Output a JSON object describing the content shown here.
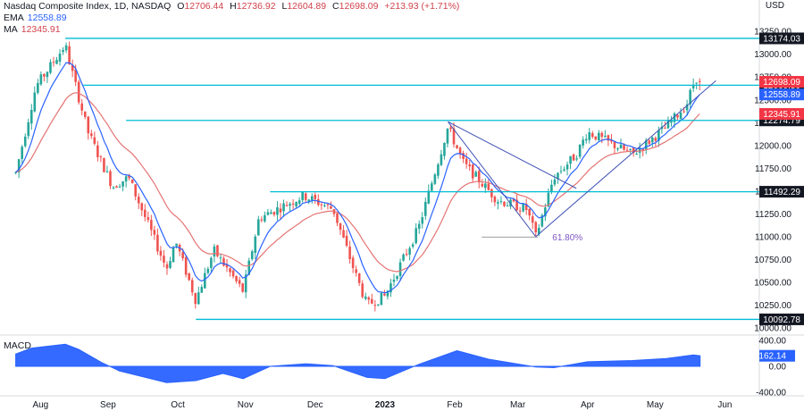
{
  "header": {
    "title": "Nasdaq Composite Index, 1D, NASDAQ",
    "ohlc": {
      "o_label": "O",
      "o": "12706.44",
      "h_label": "H",
      "h": "12736.92",
      "l_label": "L",
      "l": "12604.89",
      "c_label": "C",
      "c": "12698.09",
      "change": "+213.93 (+1.71%)"
    },
    "ema_label": "EMA",
    "ema_value": "12558.89",
    "ma_label": "MA",
    "ma_value": "12345.91",
    "currency": "USD"
  },
  "colors": {
    "up": "#26a69a",
    "down": "#ef5350",
    "ema": "#2962ff",
    "ma": "#e57373",
    "hline": "#00bcd4",
    "trend": "#3f51b5",
    "fib": "#7e57c2",
    "macd": "#2962ff",
    "close_badge": "#f23645",
    "ema_badge": "#2962ff",
    "ma_badge": "#f23645",
    "level_badge": "#131722"
  },
  "chart_data": [
    {
      "type": "candlestick",
      "title": "Nasdaq Composite Index, 1D, NASDAQ",
      "x_labels": [
        "Aug",
        "Sep",
        "Oct",
        "Nov",
        "Dec",
        "2023",
        "Feb",
        "Mar",
        "Apr",
        "May",
        "Jun"
      ],
      "y_ticks": [
        "13250.00",
        "13000.00",
        "12750.00",
        "12500.00",
        "12250.00",
        "12000.00",
        "11750.00",
        "11500.00",
        "11250.00",
        "11000.00",
        "10750.00",
        "10500.00",
        "10250.00",
        "10000.00"
      ],
      "ylim": [
        9950,
        13350
      ],
      "price_path": [
        {
          "date": "2022-07-25",
          "close": 11700
        },
        {
          "date": "2022-08-03",
          "close": 12650
        },
        {
          "date": "2022-08-16",
          "close": 13100
        },
        {
          "date": "2022-08-18",
          "close": 12900
        },
        {
          "date": "2022-08-26",
          "close": 12150
        },
        {
          "date": "2022-09-06",
          "close": 11550
        },
        {
          "date": "2022-09-13",
          "close": 11650
        },
        {
          "date": "2022-09-30",
          "close": 10650
        },
        {
          "date": "2022-10-04",
          "close": 10950
        },
        {
          "date": "2022-10-13",
          "close": 10300
        },
        {
          "date": "2022-10-21",
          "close": 10850
        },
        {
          "date": "2022-11-03",
          "close": 10400
        },
        {
          "date": "2022-11-10",
          "close": 11200
        },
        {
          "date": "2022-11-30",
          "close": 11450
        },
        {
          "date": "2022-12-13",
          "close": 11300
        },
        {
          "date": "2022-12-22",
          "close": 10650
        },
        {
          "date": "2022-12-28",
          "close": 10250
        },
        {
          "date": "2023-01-05",
          "close": 10350
        },
        {
          "date": "2023-01-20",
          "close": 11100
        },
        {
          "date": "2023-02-02",
          "close": 12200
        },
        {
          "date": "2023-02-09",
          "close": 11800
        },
        {
          "date": "2023-02-24",
          "close": 11400
        },
        {
          "date": "2023-03-09",
          "close": 11300
        },
        {
          "date": "2023-03-13",
          "close": 11000
        },
        {
          "date": "2023-03-21",
          "close": 11650
        },
        {
          "date": "2023-03-31",
          "close": 11900
        },
        {
          "date": "2023-04-05",
          "close": 12150
        },
        {
          "date": "2023-04-25",
          "close": 11900
        },
        {
          "date": "2023-05-10",
          "close": 12200
        },
        {
          "date": "2023-05-19",
          "close": 12450
        },
        {
          "date": "2023-05-23",
          "close": 12750
        },
        {
          "date": "2023-05-25",
          "close": 12700
        }
      ],
      "indicators": [
        {
          "name": "EMA",
          "last": 12558.89
        },
        {
          "name": "MA",
          "last": 12345.91
        }
      ],
      "horizontal_levels": [
        {
          "value": 13174.03,
          "label": "13174.03",
          "from": "2022-08-16"
        },
        {
          "value": 12660.5,
          "label": "12660.50",
          "from": "2022-08-24"
        },
        {
          "value": 12274.79,
          "label": "12274.79",
          "from": "2022-09-12"
        },
        {
          "value": 11492.29,
          "label": "11492.29",
          "from": "2022-11-15"
        },
        {
          "value": 10092.78,
          "label": "10092.78",
          "from": "2022-10-13"
        }
      ],
      "price_badges": [
        {
          "value": 12698.09,
          "label": "12698.09",
          "kind": "close"
        },
        {
          "value": 12558.89,
          "label": "12558.89",
          "kind": "ema"
        },
        {
          "value": 12345.91,
          "label": "12345.91",
          "kind": "ma"
        }
      ],
      "trendlines": [
        {
          "from": {
            "date": "2023-02-02",
            "value": 12260
          },
          "to": {
            "date": "2023-03-13",
            "value": 11000
          }
        },
        {
          "from": {
            "date": "2023-02-02",
            "value": 12260
          },
          "to": {
            "date": "2023-03-31",
            "value": 11530
          }
        },
        {
          "from": {
            "date": "2023-03-13",
            "value": 11000
          },
          "to": {
            "date": "2023-06-01",
            "value": 12710
          }
        }
      ],
      "fib_line": {
        "from": "2023-02-17",
        "to": "2023-03-14",
        "value": 10995,
        "label": "61.80%"
      }
    },
    {
      "type": "area",
      "title": "MACD",
      "y_ticks": [
        "400.00",
        "0.00",
        "-400.00"
      ],
      "ylim": [
        -440,
        440
      ],
      "badge": {
        "value": 162.14,
        "label": "162.14"
      },
      "values": [
        {
          "date": "2022-07-25",
          "value": 190
        },
        {
          "date": "2022-08-01",
          "value": 280
        },
        {
          "date": "2022-08-16",
          "value": 340
        },
        {
          "date": "2022-08-22",
          "value": 260
        },
        {
          "date": "2022-09-01",
          "value": 60
        },
        {
          "date": "2022-09-09",
          "value": -70
        },
        {
          "date": "2022-09-30",
          "value": -250
        },
        {
          "date": "2022-10-13",
          "value": -220
        },
        {
          "date": "2022-10-25",
          "value": -110
        },
        {
          "date": "2022-11-03",
          "value": -190
        },
        {
          "date": "2022-11-15",
          "value": 0
        },
        {
          "date": "2022-12-01",
          "value": 40
        },
        {
          "date": "2022-12-13",
          "value": 10
        },
        {
          "date": "2022-12-28",
          "value": -170
        },
        {
          "date": "2023-01-05",
          "value": -190
        },
        {
          "date": "2023-01-20",
          "value": 30
        },
        {
          "date": "2023-02-06",
          "value": 240
        },
        {
          "date": "2023-02-20",
          "value": 110
        },
        {
          "date": "2023-03-13",
          "value": -10
        },
        {
          "date": "2023-03-21",
          "value": -20
        },
        {
          "date": "2023-04-05",
          "value": 70
        },
        {
          "date": "2023-04-25",
          "value": 90
        },
        {
          "date": "2023-05-10",
          "value": 120
        },
        {
          "date": "2023-05-22",
          "value": 175
        },
        {
          "date": "2023-05-25",
          "value": 162.14
        }
      ]
    }
  ]
}
